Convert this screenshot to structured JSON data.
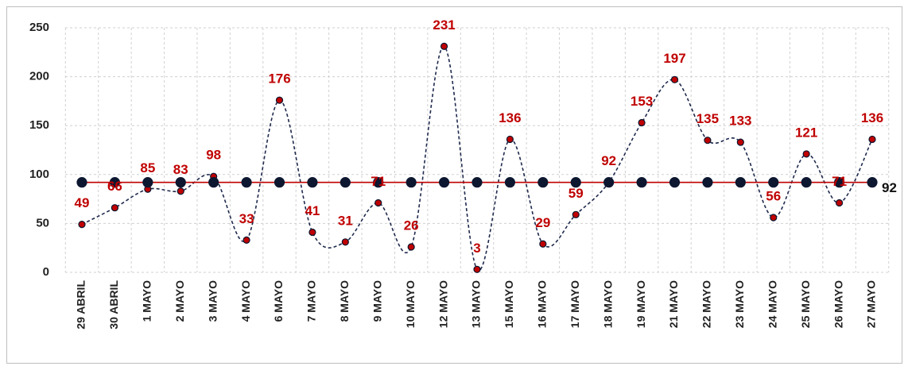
{
  "chart_data": {
    "type": "line",
    "categories": [
      "29 ABRIL",
      "30 ABRIL",
      "1 MAYO",
      "2 MAYO",
      "3 MAYO",
      "4 MAYO",
      "6 MAYO",
      "7 MAYO",
      "8 MAYO",
      "9 MAYO",
      "10 MAYO",
      "12 MAYO",
      "13 MAYO",
      "15 MAYO",
      "16 MAYO",
      "17 MAYO",
      "18 MAYO",
      "19 MAYO",
      "21 MAYO",
      "22 MAYO",
      "23 MAYO",
      "24 MAYO",
      "25 MAYO",
      "26 MAYO",
      "27 MAYO"
    ],
    "series": [
      {
        "color": "#1f2a4d",
        "marker_color": "#c00000",
        "line_style": "dashed",
        "smooth": true,
        "values": [
          49,
          66,
          85,
          83,
          98,
          33,
          176,
          41,
          31,
          71,
          26,
          231,
          3,
          136,
          29,
          59,
          92,
          153,
          197,
          135,
          133,
          56,
          121,
          71,
          136
        ]
      },
      {
        "color": "#c00000",
        "marker_color": "#0d1730",
        "line_style": "solid",
        "smooth": false,
        "values": [
          92,
          92,
          92,
          92,
          92,
          92,
          92,
          92,
          92,
          92,
          92,
          92,
          92,
          92,
          92,
          92,
          92,
          92,
          92,
          92,
          92,
          92,
          92,
          92,
          92
        ]
      }
    ],
    "ylim": [
      0,
      250
    ],
    "yticks": [
      0,
      50,
      100,
      150,
      200,
      250
    ],
    "grid": true
  }
}
